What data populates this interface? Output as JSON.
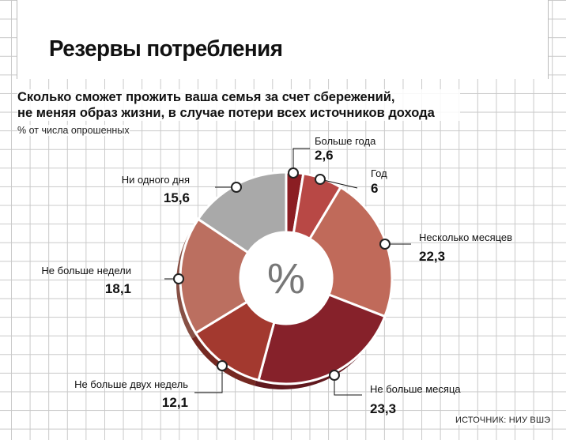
{
  "header": {
    "title": "Резервы потребления",
    "subtitle_line1": "Сколько сможет прожить ваша семья за счет сбережений,",
    "subtitle_line2": "не меняя образ жизни, в случае потери всех источников дохода",
    "units": "% от числа опрошенных"
  },
  "chart_data": {
    "type": "pie",
    "variant": "donut",
    "center_label": "%",
    "title": "Резервы потребления",
    "slices": [
      {
        "label": "Больше года",
        "value": 2.6,
        "value_text": "2,6",
        "color": "#8b1e23"
      },
      {
        "label": "Год",
        "value": 6,
        "value_text": "6",
        "color": "#b84845"
      },
      {
        "label": "Несколько месяцев",
        "value": 22.3,
        "value_text": "22,3",
        "color": "#c06a5a"
      },
      {
        "label": "Не больше месяца",
        "value": 23.3,
        "value_text": "23,3",
        "color": "#86212a"
      },
      {
        "label": "Не больше двух недель",
        "value": 12.1,
        "value_text": "12,1",
        "color": "#a3392f"
      },
      {
        "label": "Не больше недели",
        "value": 18.1,
        "value_text": "18,1",
        "color": "#bb6f60"
      },
      {
        "label": "Ни одного дня",
        "value": 15.6,
        "value_text": "15,6",
        "color": "#a9a9a9"
      }
    ]
  },
  "footer": {
    "source": "ИСТОЧНИК: НИУ ВШЭ"
  }
}
